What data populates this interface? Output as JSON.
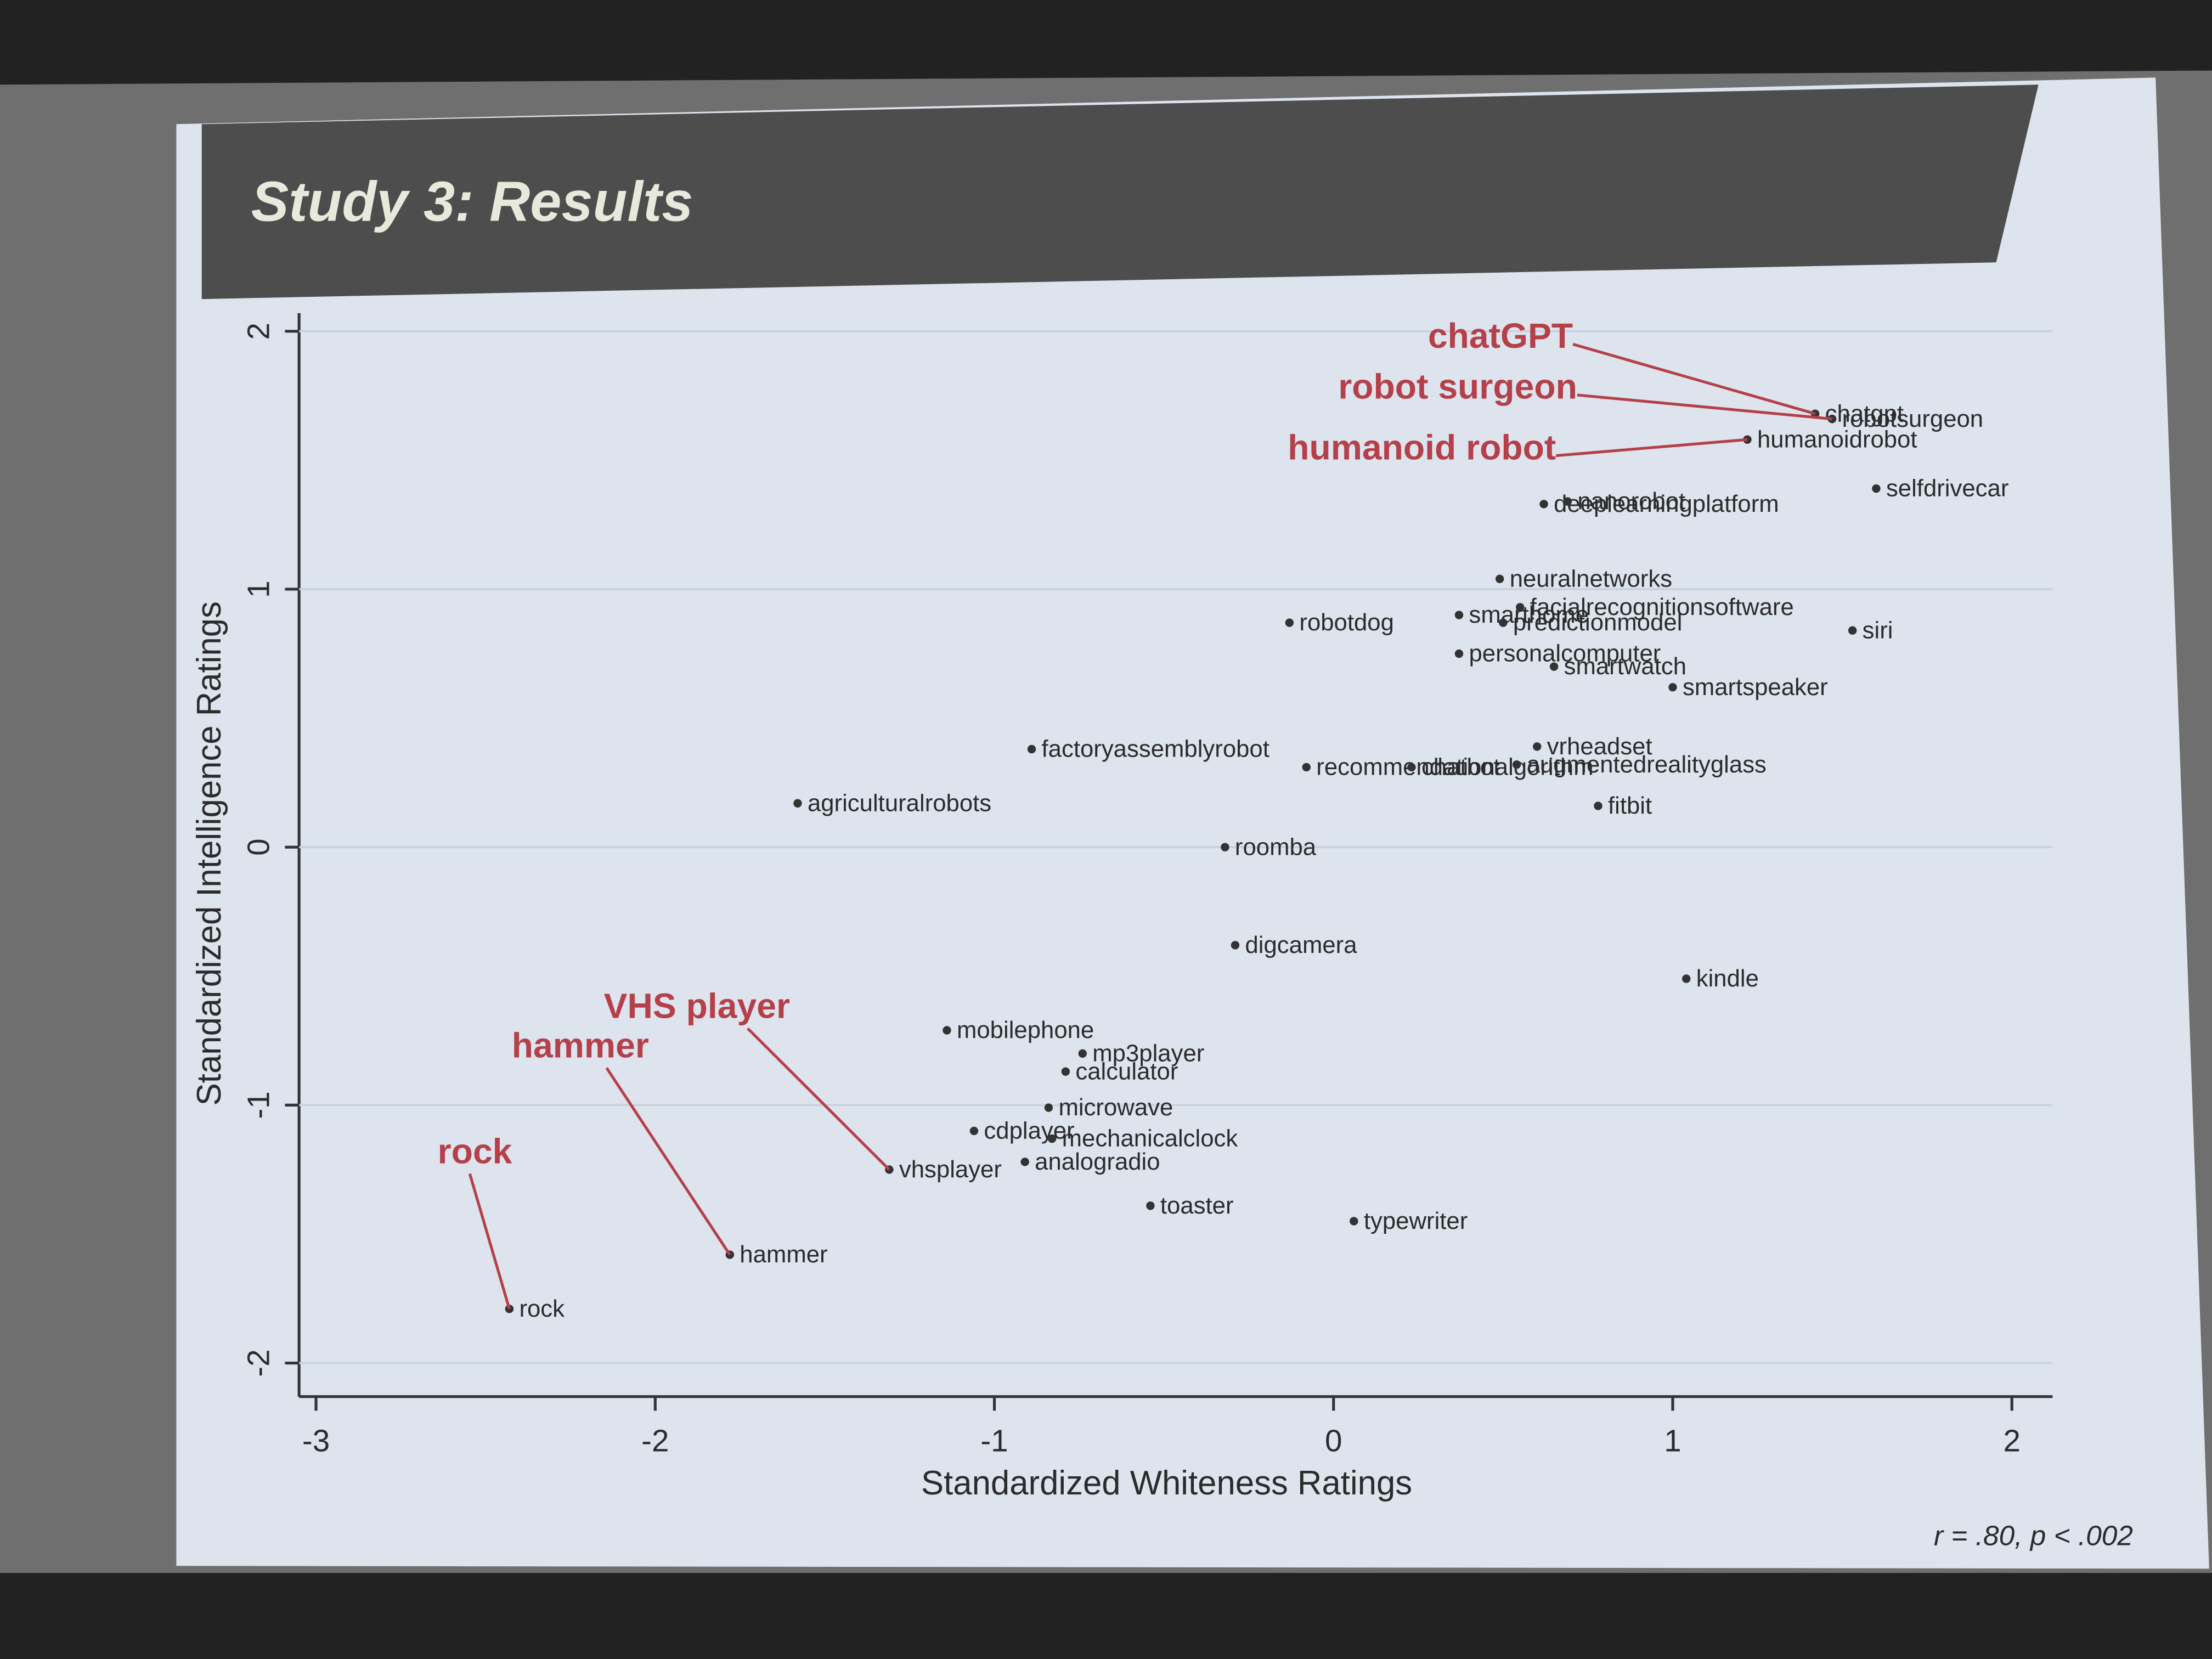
{
  "slide_title": "Study 3: Results",
  "chart_data": {
    "type": "scatter",
    "xlabel": "Standardized Whiteness Ratings",
    "ylabel": "Standardized Intelligence Ratings",
    "note": "r = .80, p < .002",
    "xlim": [
      -3.05,
      2.12
    ],
    "ylim": [
      -2.13,
      2.07
    ],
    "xticks": [
      -3,
      -2,
      -1,
      0,
      1,
      2
    ],
    "yticks": [
      -2,
      -1,
      0,
      1,
      2
    ],
    "grid": true,
    "color": "#333333",
    "annotation_color": "#b5404a",
    "labels": [
      "chatgpt",
      "robotsurgeon",
      "humanoidrobot",
      "selfdrivecar",
      "deeplearningplatform",
      "nanorobot",
      "neuralnetworks",
      "facialrecognitionsoftware",
      "smarthome",
      "predictionmodel",
      "siri",
      "robotdog",
      "personalcomputer",
      "smartwatch",
      "smartspeaker",
      "factoryassemblyrobot",
      "recommendationalgorithm",
      "vrheadset",
      "chatbot",
      "augmentedrealityglass",
      "fitbit",
      "agriculturalrobots",
      "roomba",
      "digcamera",
      "kindle",
      "mobilephone",
      "mp3player",
      "calculator",
      "microwave",
      "cdplayer",
      "mechanicalclock",
      "analogradio",
      "vhsplayer",
      "toaster",
      "typewriter",
      "hammer",
      "rock"
    ],
    "x": [
      1.42,
      1.47,
      1.22,
      1.6,
      0.62,
      0.69,
      0.49,
      0.55,
      0.37,
      0.5,
      1.53,
      -0.13,
      0.37,
      0.65,
      1.0,
      -0.89,
      -0.08,
      0.6,
      0.23,
      0.54,
      0.78,
      -1.58,
      -0.32,
      -0.29,
      1.04,
      -1.14,
      -0.74,
      -0.79,
      -0.84,
      -1.06,
      -0.83,
      -0.91,
      -1.31,
      -0.54,
      0.06,
      -1.78,
      -2.43
    ],
    "values": [
      1.68,
      1.66,
      1.58,
      1.39,
      1.33,
      1.34,
      1.04,
      0.93,
      0.9,
      0.87,
      0.84,
      0.87,
      0.75,
      0.7,
      0.62,
      0.38,
      0.31,
      0.39,
      0.31,
      0.32,
      0.16,
      0.17,
      0.0,
      -0.38,
      -0.51,
      -0.71,
      -0.8,
      -0.87,
      -1.01,
      -1.1,
      -1.13,
      -1.22,
      -1.25,
      -1.39,
      -1.45,
      -1.58,
      -1.79
    ],
    "annotations": [
      "chatGPT",
      "robot surgeon",
      "humanoid robot",
      "VHS player",
      "hammer",
      "rock"
    ]
  }
}
